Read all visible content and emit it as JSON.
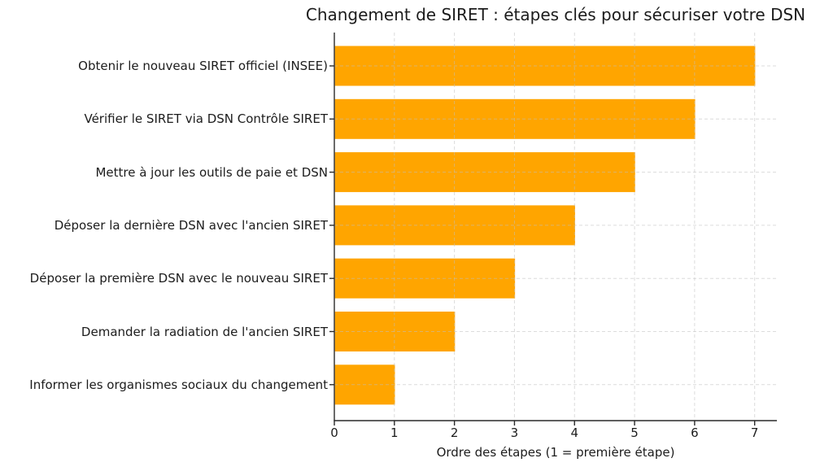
{
  "chart_data": {
    "type": "bar",
    "orientation": "horizontal",
    "title": "Changement de SIRET : étapes clés pour sécuriser votre DSN",
    "xlabel": "Ordre des étapes (1 = première étape)",
    "ylabel": "",
    "categories": [
      "Obtenir le nouveau SIRET officiel (INSEE)",
      "Vérifier le SIRET via DSN Contrôle SIRET",
      "Mettre à jour les outils de paie et DSN",
      "Déposer la dernière DSN avec l'ancien SIRET",
      "Déposer la première DSN avec le nouveau SIRET",
      "Demander la radiation de l'ancien SIRET",
      "Informer les organismes sociaux du changement"
    ],
    "values": [
      7,
      6,
      5,
      4,
      3,
      2,
      1
    ],
    "xticks": [
      0,
      1,
      2,
      3,
      4,
      5,
      6,
      7
    ],
    "xlim": [
      0,
      7.37
    ],
    "grid": true,
    "grid_style": "dashed",
    "legend_position": "none",
    "bar_color": "#FFA500",
    "grid_color": "#bfbfbf",
    "axis_color": "#2a2a2a",
    "text_color": "#1c1c1c",
    "background_color": "#ffffff"
  }
}
